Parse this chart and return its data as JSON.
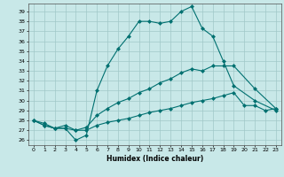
{
  "xlabel": "Humidex (Indice chaleur)",
  "background_color": "#c8e8e8",
  "grid_color": "#a0c8c8",
  "line_color": "#007070",
  "xlim": [
    -0.5,
    23.5
  ],
  "ylim": [
    25.5,
    39.8
  ],
  "yticks": [
    26,
    27,
    28,
    29,
    30,
    31,
    32,
    33,
    34,
    35,
    36,
    37,
    38,
    39
  ],
  "xticks": [
    0,
    1,
    2,
    3,
    4,
    5,
    6,
    7,
    8,
    9,
    10,
    11,
    12,
    13,
    14,
    15,
    16,
    17,
    18,
    19,
    20,
    21,
    22,
    23
  ],
  "series1_x": [
    0,
    1,
    2,
    3,
    4,
    5,
    6,
    7,
    8,
    9,
    10,
    11,
    12,
    13,
    14,
    15,
    16,
    17,
    18,
    19,
    21,
    23
  ],
  "series1_y": [
    28,
    27.7,
    27.2,
    27.2,
    26,
    26.5,
    31,
    33.5,
    35.2,
    36.5,
    38,
    38,
    37.8,
    38,
    39,
    39.5,
    37.3,
    36.5,
    34,
    31.5,
    30,
    29
  ],
  "series2_x": [
    0,
    1,
    2,
    3,
    4,
    5,
    6,
    7,
    8,
    9,
    10,
    11,
    12,
    13,
    14,
    15,
    16,
    17,
    18,
    19,
    21,
    23
  ],
  "series2_y": [
    28,
    27.5,
    27.2,
    27.2,
    27.0,
    27.3,
    28.5,
    29.2,
    29.8,
    30.2,
    30.8,
    31.2,
    31.8,
    32.2,
    32.8,
    33.2,
    33.0,
    33.5,
    33.5,
    33.5,
    31.2,
    29.2
  ],
  "series3_x": [
    0,
    1,
    2,
    3,
    4,
    5,
    6,
    7,
    8,
    9,
    10,
    11,
    12,
    13,
    14,
    15,
    16,
    17,
    18,
    19,
    20,
    21,
    22,
    23
  ],
  "series3_y": [
    28,
    27.5,
    27.2,
    27.5,
    27.0,
    27.0,
    27.5,
    27.8,
    28.0,
    28.2,
    28.5,
    28.8,
    29.0,
    29.2,
    29.5,
    29.8,
    30.0,
    30.2,
    30.5,
    30.8,
    29.5,
    29.5,
    29.0,
    29.2
  ]
}
